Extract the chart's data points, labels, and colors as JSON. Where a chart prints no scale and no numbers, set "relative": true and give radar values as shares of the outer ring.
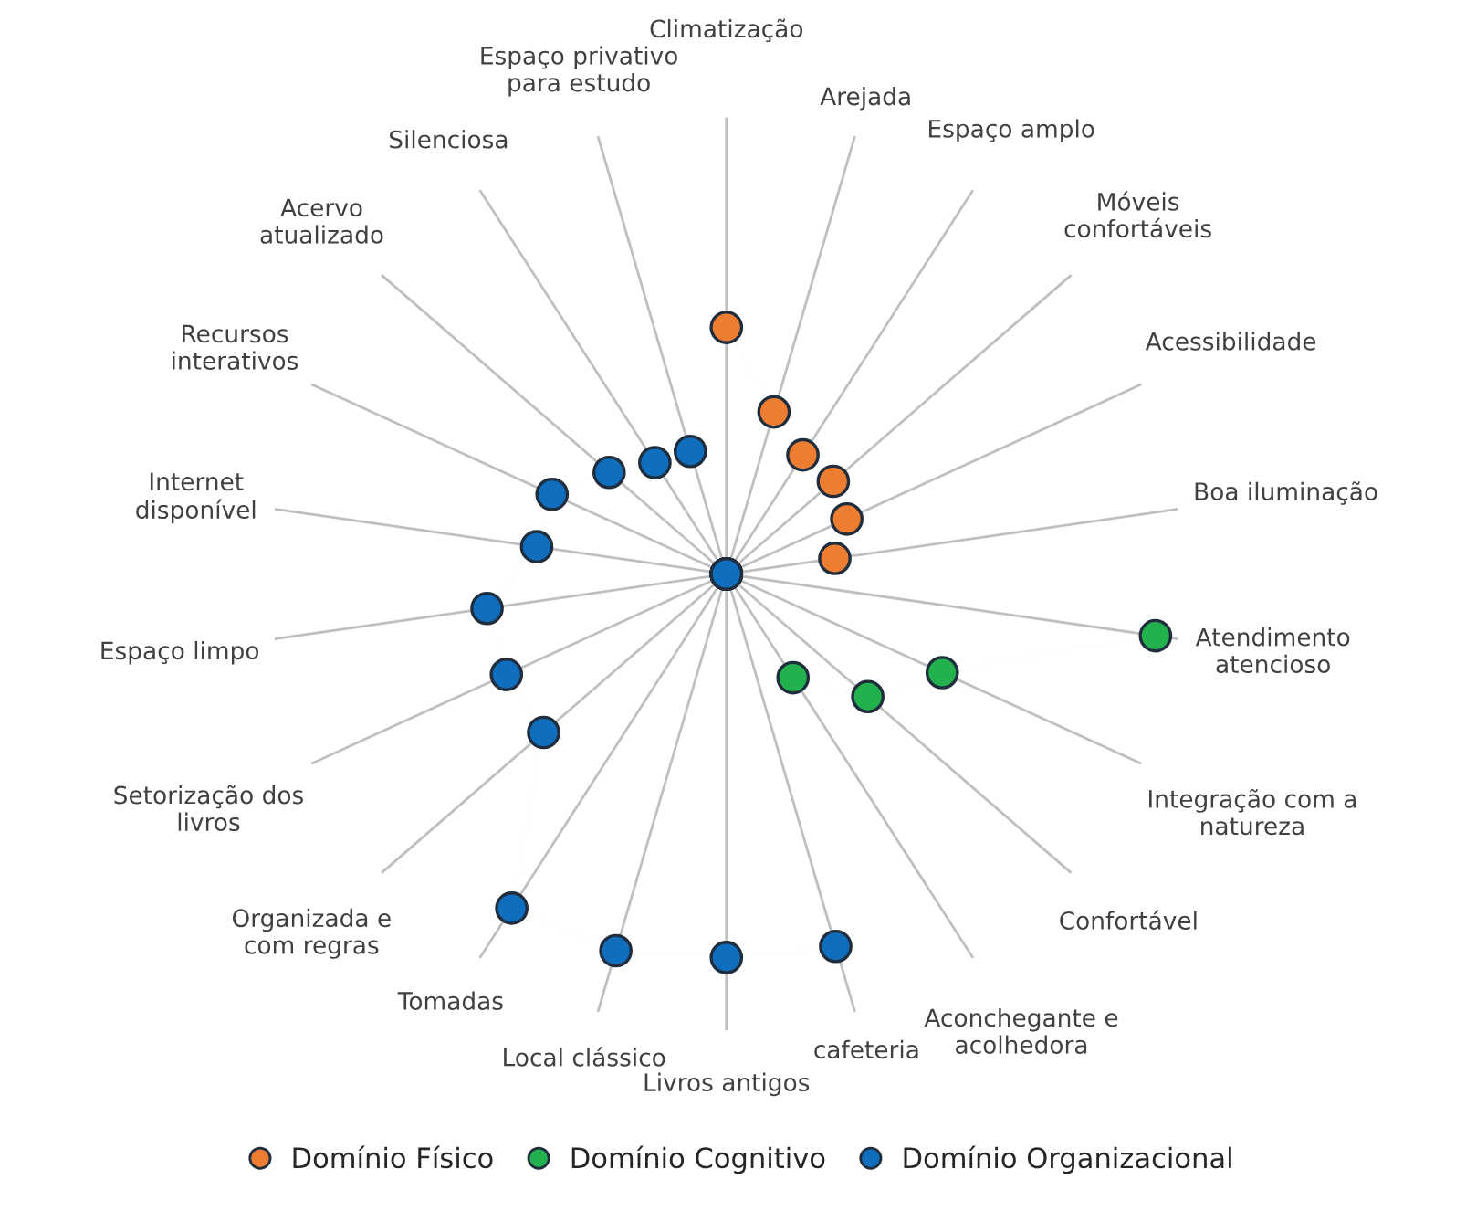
{
  "chart_data": {
    "type": "radar",
    "relative": true,
    "marker": "circle",
    "grid": "x",
    "legend": "bottom",
    "categories": [
      "Climatização",
      "Arejada",
      "Espaço amplo",
      "Móveis\nconfortáveis",
      "Acessibilidade",
      "Boa iluminação",
      "Atendimento\natencioso",
      "Integração com a\nnatureza",
      "Confortável",
      "Aconchegante e\nacolhedora",
      "cafeteria",
      "Livros antigos",
      "Local clássico",
      "Tomadas",
      "Organizada e\ncom regras",
      "Setorização dos\nlivros",
      "Espaço limpo",
      "Internet\ndisponível",
      "Recursos\ninterativos",
      "Acervo\natualizado",
      "Silenciosa",
      "Espaço privativo\npara estudo"
    ],
    "series": [
      {
        "name": "Domínio Físico",
        "color": "#ed7d31",
        "values": [
          0.54,
          0.37,
          0.31,
          0.31,
          0.29,
          0.24,
          null,
          null,
          null,
          null,
          null,
          null,
          null,
          null,
          null,
          null,
          null,
          null,
          null,
          null,
          null,
          null
        ]
      },
      {
        "name": "Domínio Cognitivo",
        "color": "#22b14c",
        "values": [
          null,
          null,
          null,
          null,
          null,
          null,
          0.95,
          0.52,
          0.41,
          0.27,
          null,
          null,
          null,
          null,
          null,
          null,
          null,
          null,
          null,
          null,
          null,
          null
        ]
      },
      {
        "name": "Domínio Organizacional",
        "color": "#0f6ebd",
        "values": [
          0,
          0,
          0,
          0,
          0,
          0,
          0,
          0,
          0,
          0,
          0.85,
          0.84,
          0.86,
          0.87,
          0.53,
          0.53,
          0.53,
          0.42,
          0.42,
          0.34,
          0.29,
          0.28
        ]
      }
    ]
  }
}
